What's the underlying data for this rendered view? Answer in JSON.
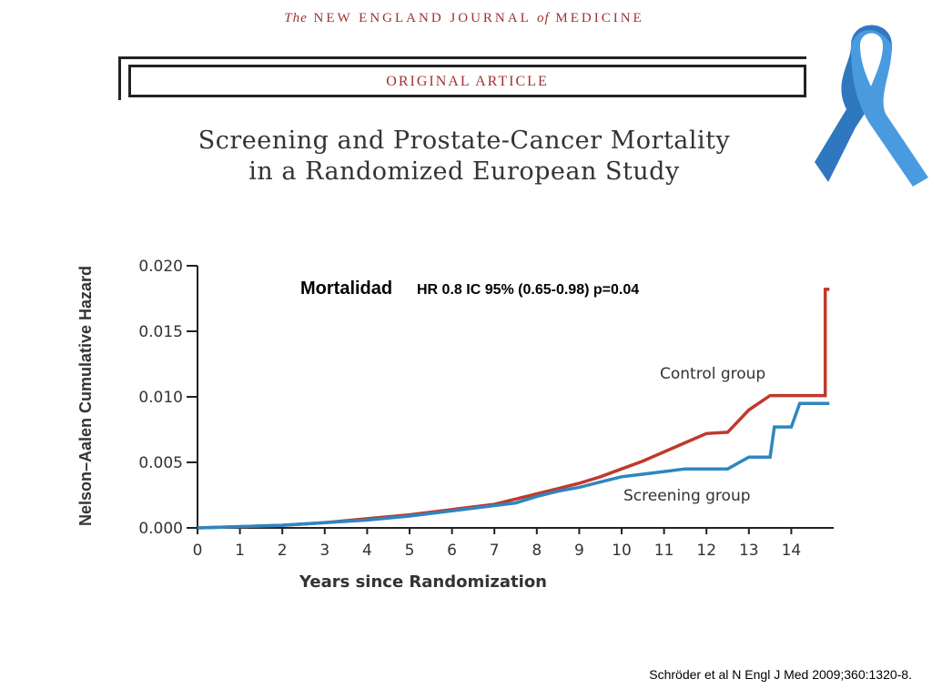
{
  "header": {
    "journal_pre": "The",
    "journal_main": "NEW ENGLAND JOURNAL",
    "journal_of": "of",
    "journal_post": "MEDICINE",
    "article_type": "ORIGINAL ARTICLE",
    "title_line1": "Screening and Prostate-Cancer Mortality",
    "title_line2": "in a Randomized European Study"
  },
  "ribbon": {
    "icon": "awareness-ribbon-icon",
    "color": "#3a86d0"
  },
  "citation": "Schröder et al N Engl J Med 2009;360:1320-8.",
  "chart_data": {
    "type": "line",
    "annotation_main": "Mortalidad",
    "annotation_stats": "HR 0.8 IC 95% (0.65-0.98) p=0.04",
    "xlabel": "Years since Randomization",
    "ylabel": "Nelson–Aalen Cumulative Hazard",
    "xlim": [
      0,
      15
    ],
    "ylim": [
      0,
      0.02
    ],
    "x_ticks": [
      0,
      1,
      2,
      3,
      4,
      5,
      6,
      7,
      8,
      9,
      10,
      11,
      12,
      13,
      14
    ],
    "y_ticks": [
      "0.000",
      "0.005",
      "0.010",
      "0.015",
      "0.020"
    ],
    "y_tick_values": [
      0,
      0.005,
      0.01,
      0.015,
      0.02
    ],
    "grid": false,
    "series": [
      {
        "name": "Control group",
        "color": "#c0392b",
        "x": [
          0,
          1,
          2,
          3,
          4,
          5,
          6,
          7,
          7.5,
          8,
          8.5,
          9,
          9.5,
          10,
          10.5,
          11,
          11.5,
          12,
          12.5,
          13,
          13.5,
          14,
          14.5,
          14.8,
          14.8,
          14.9
        ],
        "y": [
          0,
          0.0001,
          0.0002,
          0.0004,
          0.0007,
          0.001,
          0.0014,
          0.0018,
          0.0022,
          0.0026,
          0.003,
          0.0034,
          0.0039,
          0.0045,
          0.0051,
          0.0058,
          0.0065,
          0.0072,
          0.0073,
          0.009,
          0.0101,
          0.0101,
          0.0101,
          0.0101,
          0.0182,
          0.0182
        ]
      },
      {
        "name": "Screening group",
        "color": "#2e86c1",
        "x": [
          0,
          1,
          2,
          3,
          4,
          5,
          6,
          7,
          7.5,
          8,
          8.5,
          9,
          9.5,
          10,
          10.5,
          11,
          11.5,
          12,
          12.5,
          13,
          13.5,
          13.6,
          14,
          14.2,
          14.9
        ],
        "y": [
          0,
          0.0001,
          0.0002,
          0.0004,
          0.0006,
          0.0009,
          0.0013,
          0.0017,
          0.0019,
          0.0024,
          0.0028,
          0.0031,
          0.0035,
          0.0039,
          0.0041,
          0.0043,
          0.0045,
          0.0045,
          0.0045,
          0.0054,
          0.0054,
          0.0077,
          0.0077,
          0.0095,
          0.0095
        ]
      }
    ]
  }
}
